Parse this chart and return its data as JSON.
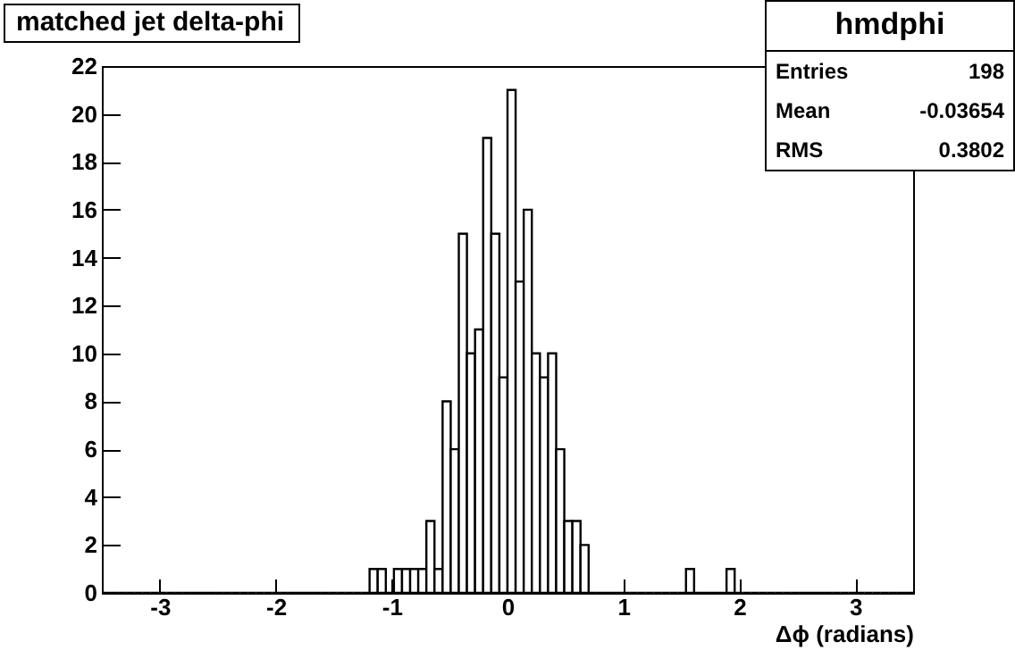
{
  "chart_data": {
    "type": "histogram",
    "title": "matched jet delta-phi",
    "xlabel": "Δϕ (radians)",
    "bins": [
      -3.5,
      -3.43,
      -3.36,
      -3.29,
      -3.22,
      -3.15,
      -3.08,
      -3.01,
      -2.94,
      -2.87,
      -2.8,
      -2.73,
      -2.66,
      -2.59,
      -2.52,
      -2.45,
      -2.38,
      -2.31,
      -2.24,
      -2.17,
      -2.1,
      -2.03,
      -1.96,
      -1.89,
      -1.82,
      -1.75,
      -1.68,
      -1.61,
      -1.54,
      -1.47,
      -1.4,
      -1.33,
      -1.26,
      -1.19,
      -1.12,
      -1.05,
      -0.98,
      -0.91,
      -0.84,
      -0.77,
      -0.7,
      -0.63,
      -0.56,
      -0.49,
      -0.42,
      -0.35,
      -0.28,
      -0.21,
      -0.14,
      -0.07,
      0,
      0.07,
      0.14,
      0.21,
      0.28,
      0.35,
      0.42,
      0.49,
      0.56,
      0.63,
      0.7,
      0.77,
      0.84,
      0.91,
      0.98,
      1.05,
      1.12,
      1.19,
      1.26,
      1.33,
      1.4,
      1.47,
      1.54,
      1.61,
      1.68,
      1.75,
      1.82,
      1.89,
      1.96,
      2.03,
      2.1,
      2.17,
      2.24,
      2.31,
      2.38,
      2.45,
      2.52,
      2.59,
      2.66,
      2.73,
      2.8,
      2.87,
      2.94,
      3.01,
      3.08,
      3.15,
      3.22,
      3.29,
      3.36,
      3.43,
      3.5
    ],
    "values": [
      0,
      0,
      0,
      0,
      0,
      0,
      0,
      0,
      0,
      0,
      0,
      0,
      0,
      0,
      0,
      0,
      0,
      0,
      0,
      0,
      0,
      0,
      0,
      0,
      0,
      0,
      0,
      0,
      0,
      0,
      0,
      0,
      0,
      1,
      1,
      0,
      1,
      1,
      1,
      1,
      3,
      1,
      8,
      6,
      15,
      10,
      11,
      19,
      15,
      9,
      21,
      13,
      16,
      10,
      9,
      10,
      6,
      3,
      3,
      2,
      0,
      0,
      0,
      0,
      0,
      0,
      0,
      0,
      0,
      0,
      0,
      0,
      1,
      0,
      0,
      0,
      0,
      1,
      0,
      0,
      0,
      0,
      0,
      0,
      0,
      0,
      0,
      0,
      0,
      0,
      0,
      0,
      0,
      0,
      0,
      0,
      0,
      0,
      0,
      0
    ],
    "color": "#000000",
    "xlim": [
      -3.5,
      3.5
    ],
    "xticks": [
      -3,
      -2,
      -1,
      0,
      1,
      2,
      3
    ],
    "ylim": [
      0,
      22
    ],
    "yticks": [
      0,
      2,
      4,
      6,
      8,
      10,
      12,
      14,
      16,
      18,
      20,
      22
    ],
    "grid": false,
    "annotations": [
      "hmdphi",
      "Entries",
      "198",
      "Mean",
      "-0.03654",
      "RMS",
      "0.3802"
    ]
  }
}
